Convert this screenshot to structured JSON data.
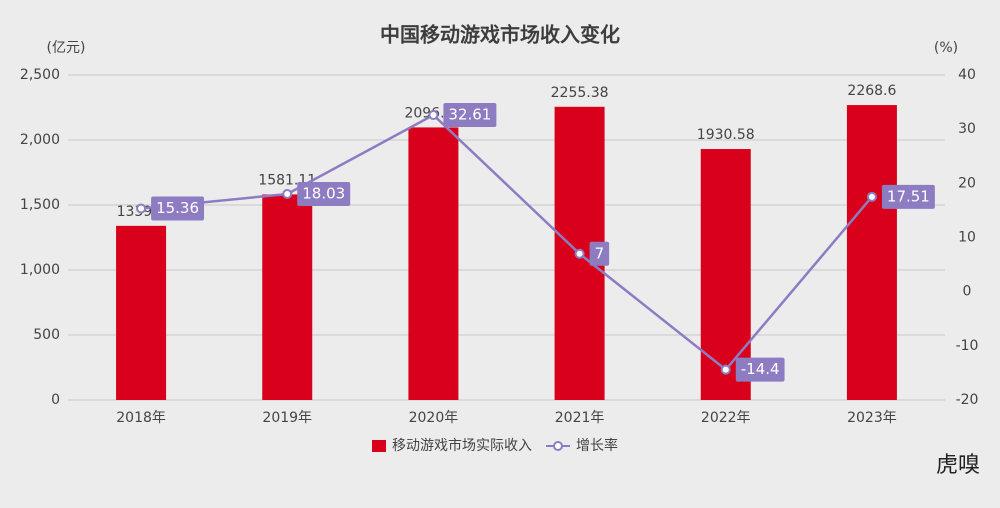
{
  "chart_data": {
    "type": "bar-line",
    "title": "中国移动游戏市场收入变化",
    "y_unit": "(亿元)",
    "y2_unit": "(%)",
    "categories": [
      "2018年",
      "2019年",
      "2020年",
      "2021年",
      "2022年",
      "2023年"
    ],
    "series": [
      {
        "name": "移动游戏市场实际收入",
        "type": "bar",
        "color": "#d9001b",
        "values": [
          1339.6,
          1581.11,
          2096.76,
          2255.38,
          1930.58,
          2268.6
        ]
      },
      {
        "name": "增长率",
        "type": "line",
        "axis": "y2",
        "color": "#8e7cc3",
        "values": [
          15.36,
          18.03,
          32.61,
          7,
          -14.4,
          17.51
        ]
      }
    ],
    "ylim": [
      0,
      2500
    ],
    "yticks": [
      0,
      500,
      {
        "value": 1000,
        "label": "1,000"
      },
      {
        "value": 1500,
        "label": "1,500"
      },
      {
        "value": 2000,
        "label": "2,000"
      },
      {
        "value": 2500,
        "label": "2,500"
      }
    ],
    "y2lim": [
      -20,
      40
    ],
    "y2ticks": [
      -20,
      -10,
      0,
      10,
      20,
      30,
      40
    ],
    "grid": true,
    "legend": "bottom",
    "watermark": "虎嗅"
  }
}
